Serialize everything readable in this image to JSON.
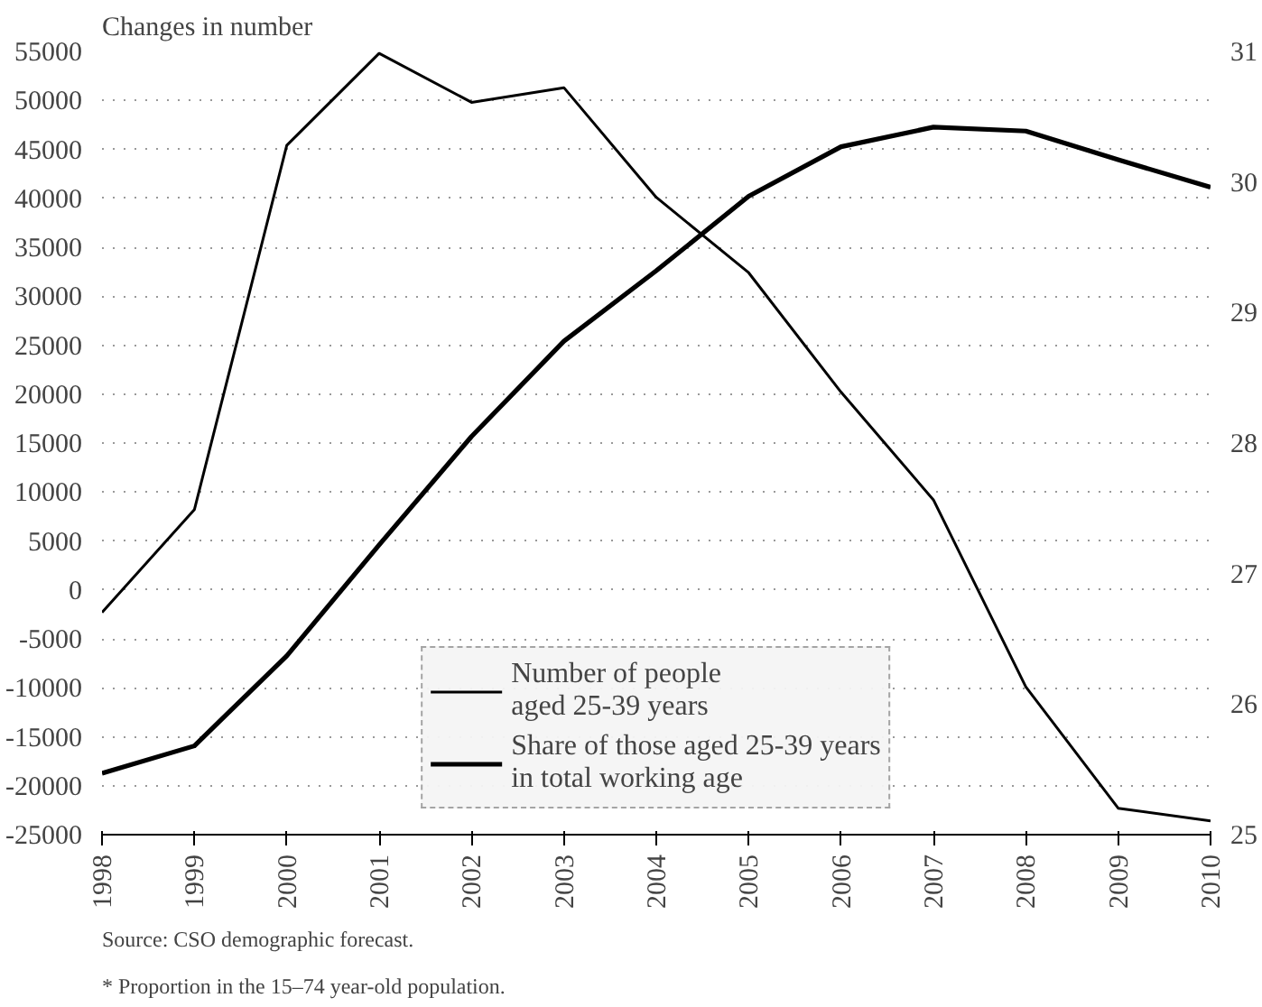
{
  "chart_data": {
    "type": "line",
    "ylabel": "Changes in number",
    "x": [
      1998,
      1999,
      2000,
      2001,
      2002,
      2003,
      2004,
      2005,
      2006,
      2007,
      2008,
      2009,
      2010
    ],
    "series": [
      {
        "name": "Number of people\naged 25-39 years",
        "color": "#000000",
        "values": [
          -2300,
          8200,
          45400,
          54800,
          49800,
          51300,
          40100,
          32400,
          20200,
          9200,
          -9900,
          -22300,
          -23600
        ]
      },
      {
        "name": "Share of those aged 25-39 years\nin total working age",
        "color": "#000000",
        "axis": "y2",
        "values": [
          25.47,
          25.68,
          26.37,
          27.22,
          28.05,
          28.78,
          29.32,
          29.89,
          30.27,
          30.42,
          30.39,
          30.17,
          29.96
        ]
      }
    ],
    "xlim": [
      1998,
      2010
    ],
    "xticks": [
      1998,
      1999,
      2000,
      2001,
      2002,
      2003,
      2004,
      2005,
      2006,
      2007,
      2008,
      2009,
      2010
    ],
    "ylim": [
      -25000,
      55000
    ],
    "yticks": [
      -25000,
      -20000,
      -15000,
      -10000,
      -5000,
      0,
      5000,
      10000,
      15000,
      20000,
      25000,
      30000,
      35000,
      40000,
      45000,
      50000,
      55000
    ],
    "y2lim": [
      25,
      31
    ],
    "y2ticks": [
      25,
      26,
      27,
      28,
      29,
      30,
      31
    ],
    "grid": "y",
    "legend": "bottom",
    "marker": "none",
    "line_style": "solid",
    "annotations": [
      "Source: CSO demographic forecast.",
      "* Proportion in the 15–74 year-old population."
    ]
  }
}
